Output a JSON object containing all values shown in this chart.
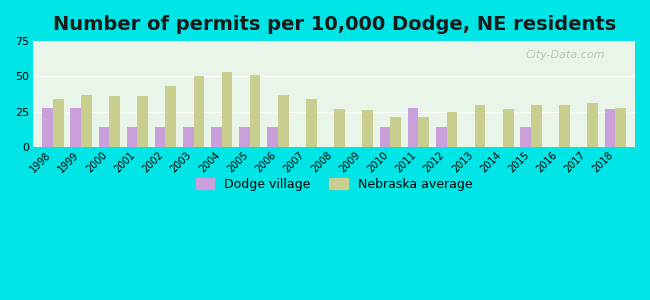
{
  "title": "Number of permits per 10,000 Dodge, NE residents",
  "years": [
    1998,
    1999,
    2000,
    2001,
    2002,
    2003,
    2004,
    2005,
    2006,
    2007,
    2008,
    2009,
    2010,
    2011,
    2012,
    2013,
    2014,
    2015,
    2016,
    2017,
    2018
  ],
  "dodge_village": [
    28,
    28,
    14,
    14,
    14,
    14,
    14,
    14,
    14,
    0,
    0,
    0,
    14,
    28,
    14,
    0,
    0,
    14,
    0,
    0,
    27
  ],
  "nebraska_avg": [
    34,
    37,
    36,
    36,
    43,
    50,
    53,
    51,
    37,
    34,
    27,
    26,
    21,
    21,
    25,
    30,
    27,
    30,
    30,
    31,
    28
  ],
  "dodge_color": "#c9a0dc",
  "nebraska_color": "#c8cf8e",
  "background_top": "#e8f5e8",
  "background_bottom": "#f5fff5",
  "outer_bg": "#00e5e5",
  "ylim": [
    0,
    75
  ],
  "yticks": [
    0,
    25,
    50,
    75
  ],
  "title_fontsize": 14,
  "legend_labels": [
    "Dodge village",
    "Nebraska average"
  ]
}
